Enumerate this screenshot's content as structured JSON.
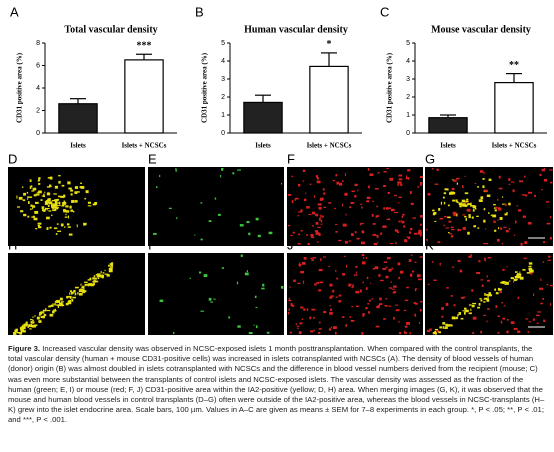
{
  "chart_data": [
    {
      "type": "bar",
      "panel": "A",
      "title": "Total vascular density",
      "ylabel": "CD31 positive area (%)",
      "categories": [
        "Islets",
        "Islets + NCSCs"
      ],
      "values": [
        2.6,
        6.5
      ],
      "errors": [
        0.45,
        0.5
      ],
      "colors": [
        "#222222",
        "#ffffff"
      ],
      "annotation": "***",
      "ylim": [
        0,
        8
      ],
      "yticks": [
        0,
        2,
        4,
        6,
        8
      ]
    },
    {
      "type": "bar",
      "panel": "B",
      "title": "Human vascular density",
      "ylabel": "CD31 positive area (%)",
      "categories": [
        "Islets",
        "Islets + NCSCs"
      ],
      "values": [
        1.7,
        3.7
      ],
      "errors": [
        0.4,
        0.75
      ],
      "colors": [
        "#222222",
        "#ffffff"
      ],
      "annotation": "*",
      "ylim": [
        0,
        5
      ],
      "yticks": [
        0,
        1,
        2,
        3,
        4,
        5
      ]
    },
    {
      "type": "bar",
      "panel": "C",
      "title": "Mouse vascular density",
      "ylabel": "CD31 positive area (%)",
      "categories": [
        "Islets",
        "Islets + NCSCs"
      ],
      "values": [
        0.85,
        2.8
      ],
      "errors": [
        0.15,
        0.5
      ],
      "colors": [
        "#222222",
        "#ffffff"
      ],
      "annotation": "**",
      "ylim": [
        0,
        5
      ],
      "yticks": [
        0,
        1,
        2,
        3,
        4,
        5
      ]
    }
  ],
  "images": [
    {
      "label": "D",
      "stain": "yellow"
    },
    {
      "label": "E",
      "stain": "green"
    },
    {
      "label": "F",
      "stain": "red"
    },
    {
      "label": "G",
      "stain": "merge"
    },
    {
      "label": "H",
      "stain": "yellow"
    },
    {
      "label": "I",
      "stain": "green"
    },
    {
      "label": "J",
      "stain": "red"
    },
    {
      "label": "K",
      "stain": "merge"
    }
  ],
  "caption": {
    "label": "Figure 3.",
    "text": "Increased vascular density was observed in NCSC-exposed islets 1 month posttransplantation. When compared with the control transplants, the total vascular density (human + mouse CD31-positive cells) was increased in islets cotransplanted with NCSCs (A). The density of blood vessels of human (donor) origin (B) was almost doubled in islets cotransplanted with NCSCs and the difference in blood vessel numbers derived from the recipient (mouse; C) was even more substantial between the transplants of control islets and NCSC-exposed islets. The vascular density was assessed as the fraction of the human (green; E, I) or mouse (red; F, J) CD31-positive area within the IA2-positive (yellow; D, H) area. When merging images (G, K), it was observed that the mouse and human blood vessels in control transplants (D–G) often were outside of the IA2-positive area, whereas the blood vessels in NCSC-transplants (H–K) grew into the islet endocrine area. Scale bars, 100 µm. Values in A–C are given as means ± SEM for 7–8 experiments in each group. *, P < .05; **, P < .01; and ***, P < .001."
  }
}
